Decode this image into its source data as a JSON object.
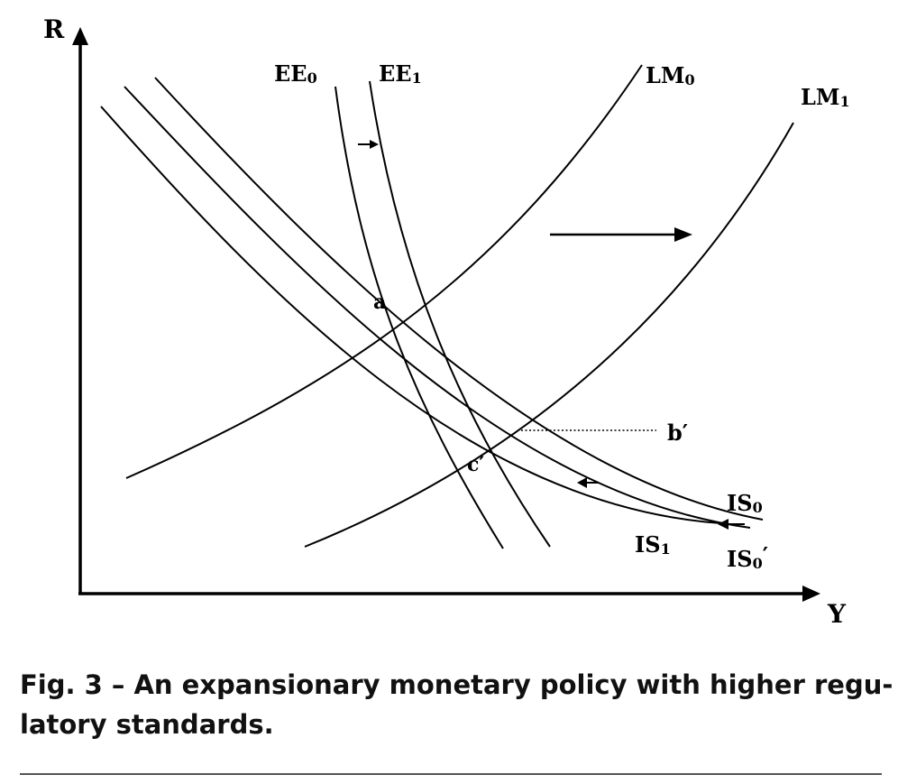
{
  "axes": {
    "y_label": "R",
    "x_label": "Y"
  },
  "curves": {
    "ee0": {
      "label": "EE",
      "sub": "0"
    },
    "ee1": {
      "label": "EE",
      "sub": "1"
    },
    "lm0": {
      "label": "LM",
      "sub": "0"
    },
    "lm1": {
      "label": "LM",
      "sub": "1"
    },
    "is0": {
      "label": "IS",
      "sub": "0"
    },
    "is0p": {
      "label": "IS",
      "sub": "0",
      "prime": "′"
    },
    "is1": {
      "label": "IS",
      "sub": "1"
    }
  },
  "points": {
    "a": "a",
    "b_prime": "b′",
    "c_prime": "c′"
  },
  "caption": {
    "line1": "Fig. 3 – An expansionary monetary policy with higher regu-",
    "line2": "latory standards."
  },
  "colors": {
    "ink": "#000000",
    "rule": "#555555"
  }
}
